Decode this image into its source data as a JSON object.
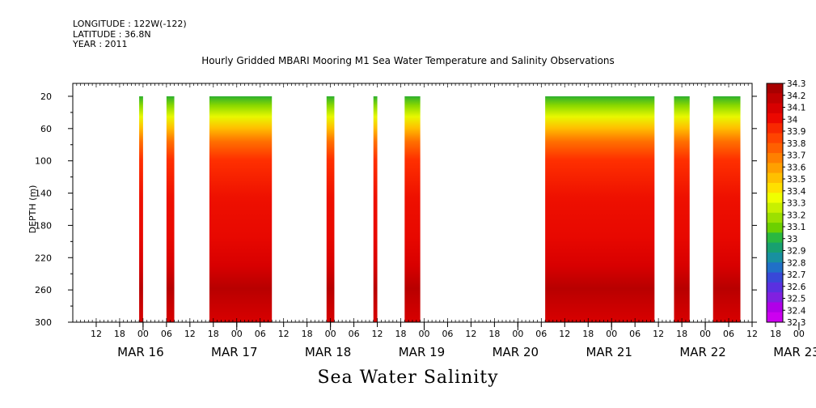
{
  "header": {
    "longitude": "LONGITUDE : 122W(-122)",
    "latitude": "LATITUDE : 36.8N",
    "year": "YEAR : 2011"
  },
  "chart_data": {
    "type": "heatmap",
    "title": "Hourly Gridded MBARI Mooring M1 Sea Water Temperature and Salinity Observations",
    "xlabel": "",
    "ylabel": "DEPTH (m)",
    "variable_label": "Sea Water Salinity",
    "x_start": "2011-03-16 06:00",
    "x_end": "2011-03-23 12:00",
    "xlim_hours": [
      0,
      174
    ],
    "ylim": [
      300,
      4
    ],
    "y_ticks": [
      20,
      60,
      100,
      140,
      180,
      220,
      260,
      300
    ],
    "x_hour_ticks": [
      "12",
      "18",
      "00",
      "06",
      "12",
      "18",
      "00",
      "06",
      "12",
      "18",
      "00",
      "06",
      "12",
      "18",
      "00",
      "06",
      "12",
      "18",
      "00",
      "06",
      "12",
      "18",
      "00",
      "06",
      "12",
      "18",
      "00",
      "06",
      "12",
      "18",
      "00",
      "06"
    ],
    "x_day_labels": [
      "MAR 16",
      "MAR 17",
      "MAR 18",
      "MAR 19",
      "MAR 20",
      "MAR 21",
      "MAR 22",
      "MAR 23"
    ],
    "colorbar": {
      "min": 32.3,
      "max": 34.3,
      "tick_labels": [
        "34.3",
        "34.2",
        "34.1",
        "34",
        "33.9",
        "33.8",
        "33.7",
        "33.6",
        "33.5",
        "33.4",
        "33.3",
        "33.2",
        "33.1",
        "33",
        "32.9",
        "32.8",
        "32.7",
        "32.6",
        "32.5",
        "32.4",
        "32.3"
      ],
      "colors": [
        "#a80000",
        "#c00000",
        "#d80000",
        "#ec0800",
        "#f82800",
        "#ff4400",
        "#ff6000",
        "#ff8000",
        "#ffa000",
        "#ffc000",
        "#ffe000",
        "#f0ff00",
        "#c8f000",
        "#9ce000",
        "#6cd000",
        "#2ab840",
        "#18a070",
        "#1890a0",
        "#2070c8",
        "#3848d8",
        "#5a30e0",
        "#8020e0",
        "#b000e8",
        "#cc00f0"
      ]
    },
    "data_segments": [
      {
        "start_hour": 17,
        "end_hour": 18,
        "surface_salinity": 33.5
      },
      {
        "start_hour": 24,
        "end_hour": 26,
        "surface_salinity": 33.3
      },
      {
        "start_hour": 35,
        "end_hour": 51,
        "surface_salinity": 33.3
      },
      {
        "start_hour": 65,
        "end_hour": 67,
        "surface_salinity": 33.4
      },
      {
        "start_hour": 77,
        "end_hour": 78,
        "surface_salinity": 33.6
      },
      {
        "start_hour": 85,
        "end_hour": 89,
        "surface_salinity": 33.2
      },
      {
        "start_hour": 121,
        "end_hour": 149,
        "surface_salinity": 33.0
      },
      {
        "start_hour": 154,
        "end_hour": 158,
        "surface_salinity": 33.1
      },
      {
        "start_hour": 164,
        "end_hour": 171,
        "surface_salinity": 33.2
      }
    ],
    "salinity_profile": [
      {
        "depth": 20,
        "salinity": 33.2
      },
      {
        "depth": 40,
        "salinity": 33.5
      },
      {
        "depth": 60,
        "salinity": 33.8
      },
      {
        "depth": 80,
        "salinity": 33.95
      },
      {
        "depth": 100,
        "salinity": 34.0
      },
      {
        "depth": 140,
        "salinity": 34.05
      },
      {
        "depth": 180,
        "salinity": 34.1
      },
      {
        "depth": 220,
        "salinity": 34.15
      },
      {
        "depth": 260,
        "salinity": 34.22
      },
      {
        "depth": 300,
        "salinity": 34.2
      }
    ]
  }
}
